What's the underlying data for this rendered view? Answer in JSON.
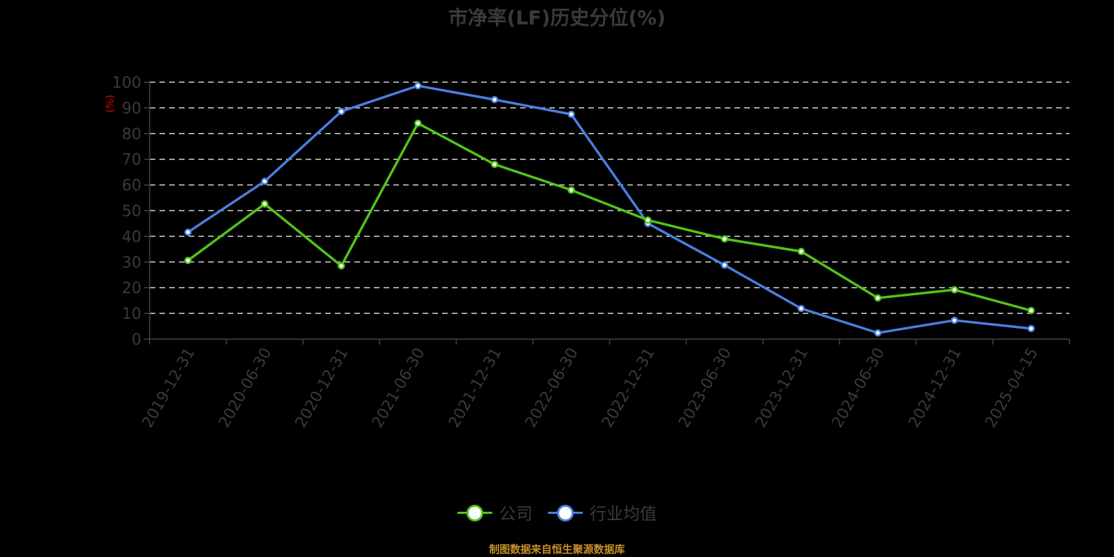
{
  "title": "市净率(LF)历史分位(%)",
  "y_unit": "(%)",
  "legend": {
    "company": "公司",
    "industry": "行业均值"
  },
  "source": "制图数据来自恒生聚源数据库",
  "colors": {
    "company": "#52c41a",
    "industry": "#4a7fe0",
    "axis_text": "#3a3a3a",
    "grid": "#d9d9d9",
    "unit": "#e00000",
    "source": "#c8902a"
  },
  "chart_data": {
    "type": "line",
    "title": "市净率(LF)历史分位(%)",
    "xlabel": "",
    "ylabel": "(%)",
    "ylim": [
      0,
      100
    ],
    "yticks": [
      0,
      10,
      20,
      30,
      40,
      50,
      60,
      70,
      80,
      90,
      100
    ],
    "grid": true,
    "legend_position": "bottom",
    "categories": [
      "2019-12-31",
      "2020-06-30",
      "2020-12-31",
      "2021-06-30",
      "2021-12-31",
      "2022-06-30",
      "2022-12-31",
      "2023-06-30",
      "2023-12-31",
      "2024-06-30",
      "2024-12-31",
      "2025-04-15"
    ],
    "series": [
      {
        "name": "公司",
        "values": [
          30.6,
          52.6,
          28.5,
          84.0,
          68.0,
          58.0,
          46.3,
          39.0,
          34.1,
          16.0,
          19.2,
          11.1
        ]
      },
      {
        "name": "行业均值",
        "values": [
          41.6,
          61.4,
          88.6,
          98.6,
          93.2,
          87.5,
          45.0,
          28.8,
          11.9,
          2.4,
          7.3,
          4.1
        ]
      }
    ]
  }
}
